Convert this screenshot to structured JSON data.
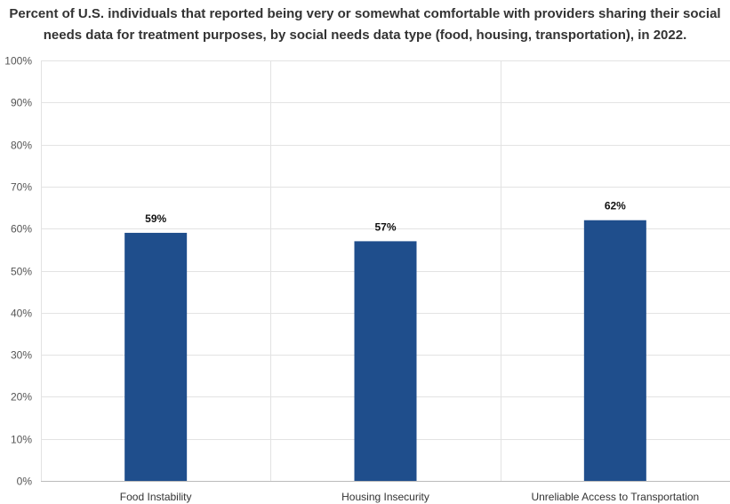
{
  "chart_data": {
    "type": "bar",
    "title_lines": [
      "Percent of U.S. individuals that reported being very or somewhat comfortable with providers sharing their social",
      "needs data for treatment purposes, by social needs data type (food, housing, transportation), in 2022."
    ],
    "categories": [
      "Food Instability",
      "Housing Insecurity",
      "Unreliable Access to Transportation"
    ],
    "values": [
      59,
      57,
      62
    ],
    "data_labels": [
      "59%",
      "57%",
      "62%"
    ],
    "ylim": [
      0,
      100
    ],
    "yticks": [
      0,
      10,
      20,
      30,
      40,
      50,
      60,
      70,
      80,
      90,
      100
    ],
    "ytick_labels": [
      "0%",
      "10%",
      "20%",
      "30%",
      "40%",
      "50%",
      "60%",
      "70%",
      "80%",
      "90%",
      "100%"
    ],
    "xlabel": "",
    "ylabel": "",
    "grid": true,
    "legend": "none",
    "bar_color": "#1f4e8c",
    "grid_color": "#e3e3e3",
    "axis_color": "#bbbbbb"
  }
}
